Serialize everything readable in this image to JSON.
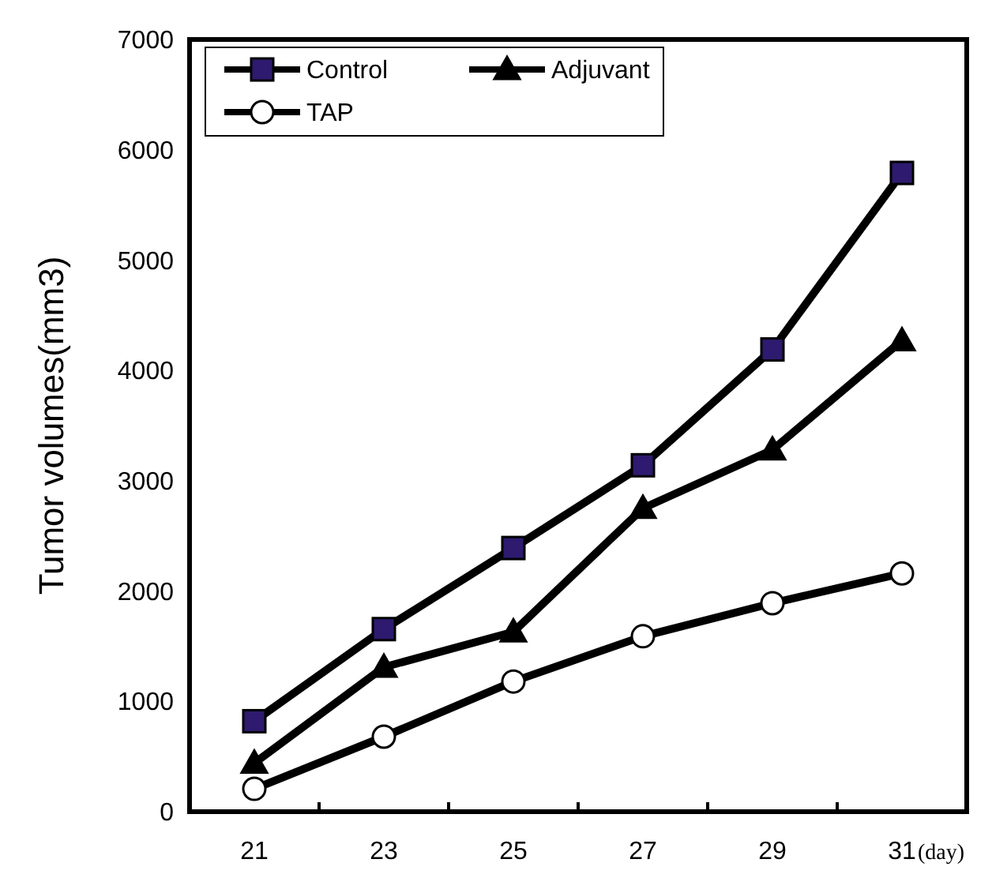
{
  "chart_data": {
    "type": "line",
    "ylabel": "Tumor volumes(mm3)",
    "xlabel": "(day)",
    "categories": [
      "21",
      "23",
      "25",
      "27",
      "29",
      "31"
    ],
    "ylim": [
      0,
      7000
    ],
    "yticks": [
      0,
      1000,
      2000,
      3000,
      4000,
      5000,
      6000,
      7000
    ],
    "grid": false,
    "legend": "top left",
    "line_style": "solid",
    "series": [
      {
        "name": "Control",
        "color": "#2e1a6e",
        "marker": "square",
        "values": [
          820,
          1655,
          2390,
          3140,
          4190,
          5790
        ]
      },
      {
        "name": "Adjuvant",
        "color": "#000000",
        "marker": "triangle",
        "values": [
          440,
          1310,
          1630,
          2750,
          3280,
          4270
        ]
      },
      {
        "name": "TAP",
        "color": "#ffffff",
        "marker": "circle",
        "values": [
          207,
          680,
          1180,
          1590,
          1890,
          2160
        ]
      }
    ]
  }
}
